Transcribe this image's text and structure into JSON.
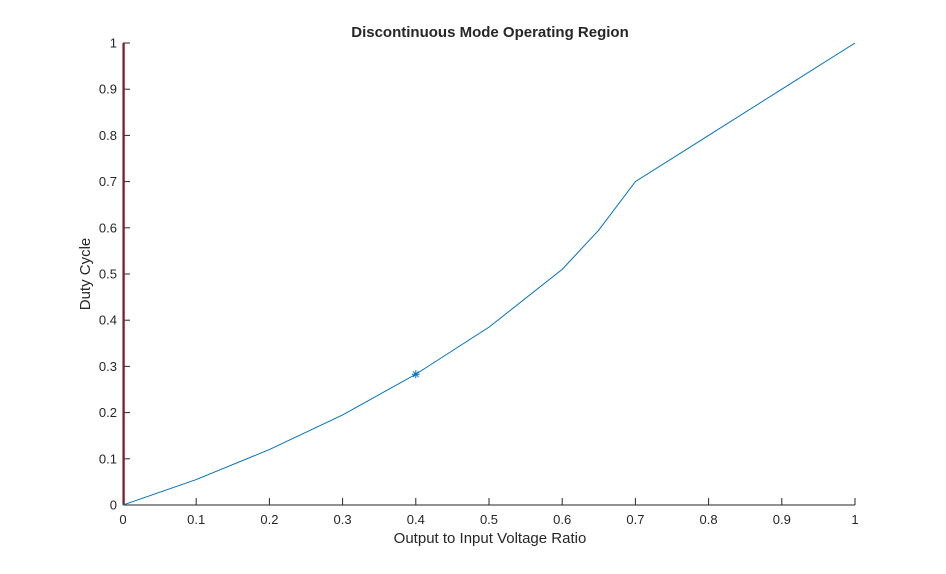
{
  "chart_data": {
    "type": "line",
    "title": "Discontinuous Mode Operating Region",
    "xlabel": "Output to Input Voltage Ratio",
    "ylabel": "Duty Cycle",
    "xlim": [
      0,
      1
    ],
    "ylim": [
      0,
      1
    ],
    "xticks": [
      "0",
      "0.1",
      "0.2",
      "0.3",
      "0.4",
      "0.5",
      "0.6",
      "0.7",
      "0.8",
      "0.9",
      "1"
    ],
    "yticks": [
      "0",
      "0.1",
      "0.2",
      "0.3",
      "0.4",
      "0.5",
      "0.6",
      "0.7",
      "0.8",
      "0.9",
      "1"
    ],
    "grid": false,
    "series": [
      {
        "color": "#0072bd",
        "x": [
          0,
          0.1,
          0.2,
          0.3,
          0.4,
          0.5,
          0.6,
          0.65,
          0.7,
          0.8,
          0.9,
          1.0
        ],
        "y": [
          0,
          0.055,
          0.12,
          0.195,
          0.283,
          0.385,
          0.51,
          0.595,
          0.7,
          0.8,
          0.9,
          1.0
        ]
      }
    ],
    "marker_point": {
      "x": 0.4,
      "y": 0.283,
      "symbol": "*",
      "color": "#0072bd"
    },
    "vertical_line": {
      "x": 0,
      "y_range": [
        0,
        1
      ],
      "color": "#a2142f"
    }
  }
}
